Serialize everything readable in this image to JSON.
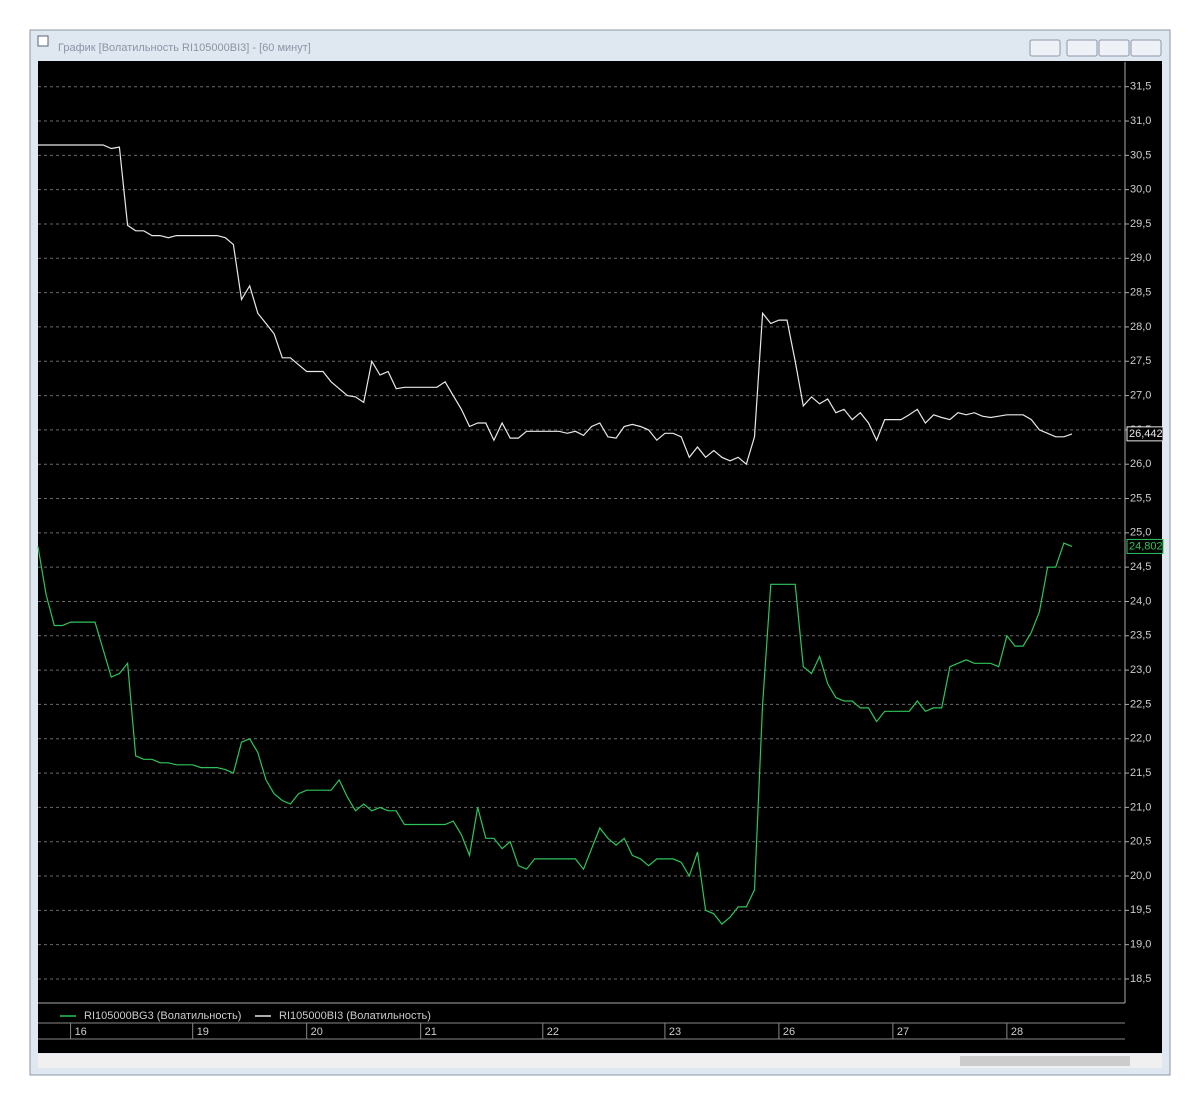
{
  "window": {
    "title": "График [Волатильность RI105000BI3] - [60 минут]"
  },
  "chart_data": {
    "type": "line",
    "categories": [
      null,
      null,
      null,
      null,
      "16",
      null,
      null,
      null,
      null,
      null,
      null,
      null,
      null,
      null,
      null,
      null,
      null,
      null,
      null,
      "19",
      null,
      null,
      null,
      null,
      null,
      null,
      null,
      null,
      null,
      null,
      null,
      null,
      null,
      "20",
      null,
      null,
      null,
      null,
      null,
      null,
      null,
      null,
      null,
      null,
      null,
      null,
      null,
      "21",
      null,
      null,
      null,
      null,
      null,
      null,
      null,
      null,
      null,
      null,
      null,
      null,
      null,
      null,
      "22",
      null,
      null,
      null,
      null,
      null,
      null,
      null,
      null,
      null,
      null,
      null,
      null,
      null,
      null,
      "23",
      null,
      null,
      null,
      null,
      null,
      null,
      null,
      null,
      null,
      null,
      null,
      null,
      null,
      "26",
      null,
      null,
      null,
      null,
      null,
      null,
      null,
      null,
      null,
      null,
      null,
      null,
      null,
      "27",
      null,
      null,
      null,
      null,
      null,
      null,
      null,
      null,
      null,
      null,
      null,
      null,
      null,
      "28",
      null,
      null,
      null,
      null,
      null,
      null,
      null,
      null
    ],
    "series": [
      {
        "name": "RI105000BG3 (Волатильность)",
        "color": "#2ec45a",
        "last_label": "24,802",
        "values": [
          24.8,
          24.1,
          23.65,
          23.65,
          23.7,
          23.7,
          23.7,
          23.7,
          23.3,
          22.9,
          22.95,
          23.1,
          21.75,
          21.7,
          21.7,
          21.65,
          21.65,
          21.62,
          21.62,
          21.62,
          21.58,
          21.58,
          21.58,
          21.55,
          21.5,
          21.95,
          22.0,
          21.8,
          21.4,
          21.2,
          21.1,
          21.05,
          21.2,
          21.25,
          21.25,
          21.25,
          21.25,
          21.4,
          21.15,
          20.95,
          21.05,
          20.95,
          21.0,
          20.95,
          20.95,
          20.75,
          20.75,
          20.75,
          20.75,
          20.75,
          20.75,
          20.8,
          20.6,
          20.3,
          21.0,
          20.55,
          20.55,
          20.4,
          20.5,
          20.15,
          20.1,
          20.25,
          20.25,
          20.25,
          20.25,
          20.25,
          20.25,
          20.1,
          20.4,
          20.7,
          20.55,
          20.45,
          20.55,
          20.3,
          20.25,
          20.15,
          20.25,
          20.25,
          20.25,
          20.2,
          20.0,
          20.35,
          19.5,
          19.45,
          19.3,
          19.4,
          19.55,
          19.55,
          19.8,
          22.5,
          24.25,
          24.25,
          24.25,
          24.25,
          23.05,
          22.95,
          23.2,
          22.8,
          22.6,
          22.55,
          22.55,
          22.45,
          22.45,
          22.25,
          22.4,
          22.4,
          22.4,
          22.4,
          22.55,
          22.4,
          22.45,
          22.45,
          23.05,
          23.1,
          23.15,
          23.1,
          23.1,
          23.1,
          23.05,
          23.5,
          23.35,
          23.35,
          23.55,
          23.85,
          24.5,
          24.5,
          24.85,
          24.802
        ]
      },
      {
        "name": "RI105000BI3 (Волатильность)",
        "color": "#e8e8e8",
        "last_label": "26,442",
        "values": [
          30.65,
          30.65,
          30.65,
          30.65,
          30.65,
          30.65,
          30.65,
          30.65,
          30.65,
          30.6,
          30.62,
          29.48,
          29.4,
          29.4,
          29.33,
          29.33,
          29.3,
          29.33,
          29.33,
          29.33,
          29.33,
          29.33,
          29.33,
          29.3,
          29.2,
          28.4,
          28.6,
          28.2,
          28.05,
          27.9,
          27.55,
          27.55,
          27.45,
          27.35,
          27.35,
          27.35,
          27.2,
          27.1,
          27.0,
          26.98,
          26.9,
          27.5,
          27.3,
          27.35,
          27.1,
          27.12,
          27.12,
          27.12,
          27.12,
          27.12,
          27.2,
          27.0,
          26.8,
          26.55,
          26.6,
          26.6,
          26.35,
          26.6,
          26.38,
          26.38,
          26.48,
          26.48,
          26.48,
          26.48,
          26.48,
          26.45,
          26.48,
          26.42,
          26.55,
          26.6,
          26.4,
          26.38,
          26.55,
          26.58,
          26.55,
          26.5,
          26.35,
          26.45,
          26.45,
          26.4,
          26.1,
          26.25,
          26.1,
          26.2,
          26.1,
          26.05,
          26.1,
          26.0,
          26.4,
          28.2,
          28.05,
          28.1,
          28.1,
          27.5,
          26.85,
          26.98,
          26.88,
          26.95,
          26.75,
          26.8,
          26.65,
          26.75,
          26.6,
          26.35,
          26.65,
          26.65,
          26.65,
          26.72,
          26.8,
          26.6,
          26.72,
          26.68,
          26.65,
          26.75,
          26.72,
          26.75,
          26.7,
          26.68,
          26.7,
          26.72,
          26.72,
          26.72,
          26.65,
          26.5,
          26.45,
          26.4,
          26.4,
          26.442
        ]
      }
    ],
    "ylim": [
      18.15,
      31.86
    ],
    "yticks": [
      {
        "value": 18.5,
        "label": "18,5"
      },
      {
        "value": 19,
        "label": "19,0"
      },
      {
        "value": 19.5,
        "label": "19,5"
      },
      {
        "value": 20,
        "label": "20,0"
      },
      {
        "value": 20.5,
        "label": "20,5"
      },
      {
        "value": 21,
        "label": "21,0"
      },
      {
        "value": 21.5,
        "label": "21,5"
      },
      {
        "value": 22,
        "label": "22,0"
      },
      {
        "value": 22.5,
        "label": "22,5"
      },
      {
        "value": 23,
        "label": "23,0"
      },
      {
        "value": 23.5,
        "label": "23,5"
      },
      {
        "value": 24,
        "label": "24,0"
      },
      {
        "value": 24.5,
        "label": "24,5"
      },
      {
        "value": 25,
        "label": "25,0"
      },
      {
        "value": 25.5,
        "label": "25,5"
      },
      {
        "value": 26,
        "label": "26,0"
      },
      {
        "value": 26.5,
        "label": "26,5"
      },
      {
        "value": 27,
        "label": "27,0"
      },
      {
        "value": 27.5,
        "label": "27,5"
      },
      {
        "value": 28,
        "label": "28,0"
      },
      {
        "value": 28.5,
        "label": "28,5"
      },
      {
        "value": 29,
        "label": "29,0"
      },
      {
        "value": 29.5,
        "label": "29,5"
      },
      {
        "value": 30,
        "label": "30,0"
      },
      {
        "value": 30.5,
        "label": "30,5"
      },
      {
        "value": 31,
        "label": "31,0"
      },
      {
        "value": 31.5,
        "label": "31,5"
      }
    ],
    "grid": true
  }
}
